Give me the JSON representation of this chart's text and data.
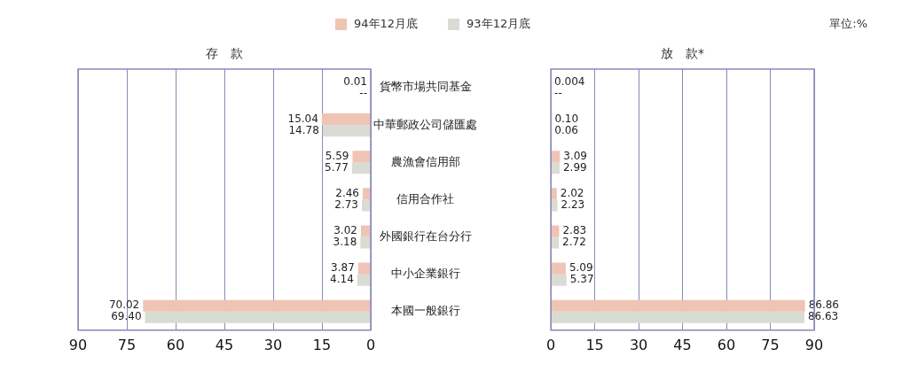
{
  "chart_data": [
    {
      "type": "bar",
      "orientation": "horizontal",
      "title": "存　款",
      "categories": [
        "貨幣市場共同基金",
        "中華郵政公司儲匯處",
        "農漁會信用部",
        "信用合作社",
        "外國銀行在台分行",
        "中小企業銀行",
        "本國一般銀行"
      ],
      "series": [
        {
          "name": "94年12月底",
          "color": "#efc4b4",
          "values": [
            0.01,
            15.04,
            5.59,
            2.46,
            3.02,
            3.87,
            70.02
          ],
          "value_labels": [
            "0.01",
            "15.04",
            "5.59",
            "2.46",
            "3.02",
            "3.87",
            "70.02"
          ]
        },
        {
          "name": "93年12月底",
          "color": "#d9dcd2",
          "values": [
            null,
            14.78,
            5.77,
            2.73,
            3.18,
            4.14,
            69.4
          ],
          "value_labels": [
            "--",
            "14.78",
            "5.77",
            "2.73",
            "3.18",
            "4.14",
            "69.40"
          ]
        }
      ],
      "xlim": [
        90,
        0
      ],
      "xticks": [
        90,
        75,
        60,
        45,
        30,
        15,
        0
      ],
      "grid": "x",
      "legend": "top"
    },
    {
      "type": "bar",
      "orientation": "horizontal",
      "title": "放　款*",
      "categories": [
        null,
        null,
        null,
        null,
        null,
        null,
        null
      ],
      "series": [
        {
          "color": "#efc4b4",
          "values": [
            0.004,
            0.1,
            3.09,
            2.02,
            2.83,
            5.09,
            86.86
          ],
          "value_labels": [
            "0.004",
            "0.10",
            "3.09",
            "2.02",
            "2.83",
            "5.09",
            "86.86"
          ]
        },
        {
          "color": "#d9dcd2",
          "values": [
            null,
            0.06,
            2.99,
            2.23,
            2.72,
            5.37,
            86.63
          ],
          "value_labels": [
            "--",
            "0.06",
            "2.99",
            "2.23",
            "2.72",
            "5.37",
            "86.63"
          ]
        }
      ],
      "xlim": [
        0,
        90
      ],
      "xticks": [
        0,
        15,
        30,
        45,
        60,
        75,
        90
      ],
      "grid": "x",
      "tick_labels": "x",
      "annotations": [
        "單位:%"
      ]
    }
  ]
}
